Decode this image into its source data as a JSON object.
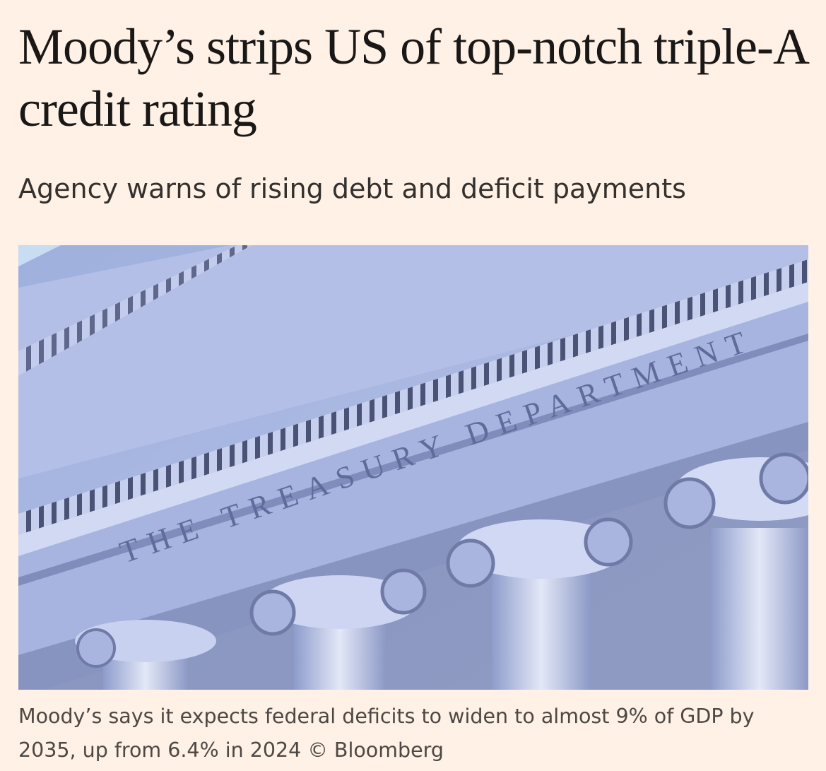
{
  "article": {
    "headline": "Moody’s strips US of top-notch triple-A credit rating",
    "standfirst": "Agency warns of rising debt and deficit payments",
    "image": {
      "inscription": "THE TREASURY DEPARTMENT"
    },
    "caption": "Moody’s says it expects federal deficits to widen to almost 9% of GDP by 2035, up from 6.4% in 2024 © Bloomberg"
  }
}
